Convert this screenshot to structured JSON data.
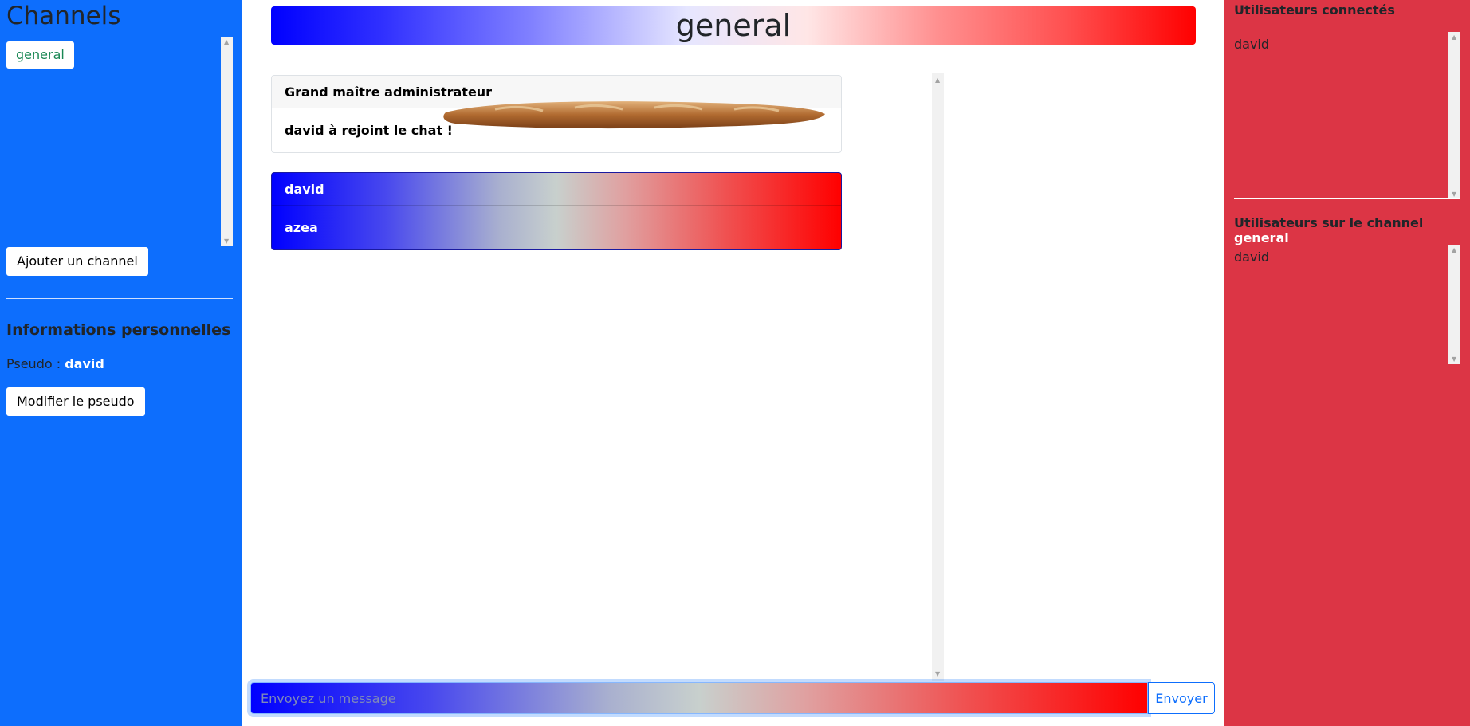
{
  "left_sidebar": {
    "title": "Channels",
    "channels": [
      {
        "label": "general"
      }
    ],
    "add_channel_label": "Ajouter un channel",
    "personal_info_title": "Informations personnelles",
    "pseudo_label": "Pseudo :",
    "pseudo_value": "david",
    "edit_pseudo_label": "Modifier le pseudo"
  },
  "main": {
    "channel_title": "general",
    "messages": [
      {
        "author": "Grand maître administrateur",
        "lines": [
          "david à rejoint le chat !"
        ]
      },
      {
        "author": "david",
        "lines": [
          "azea"
        ]
      }
    ],
    "input": {
      "placeholder": "Envoyez un message",
      "value": ""
    },
    "send_label": "Envoyer"
  },
  "right_sidebar": {
    "connected_title": "Utilisateurs connectés",
    "connected_users": [
      "david"
    ],
    "channel_users_title": "Utilisateurs sur le channel",
    "channel_users_channel": "general",
    "channel_users": [
      "david"
    ]
  },
  "colors": {
    "left_bg": "#0d6efd",
    "right_bg": "#dc3545",
    "channel_active_text": "#198754",
    "send_button": "#0d6efd"
  }
}
